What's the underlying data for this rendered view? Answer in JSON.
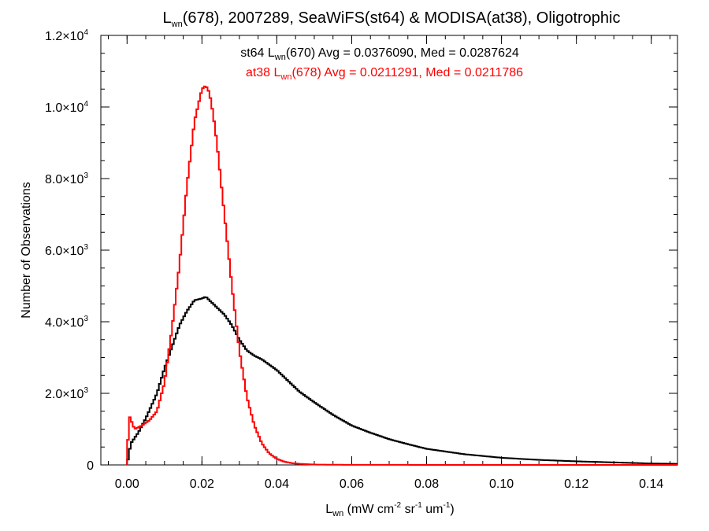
{
  "chart_data": {
    "type": "line",
    "title": {
      "main": "L",
      "sub": "wn",
      "rest": "(678), 2007289, SeaWiFS(st64) & MODISA(at38), Oligotrophic"
    },
    "xlabel": {
      "main": "L",
      "sub": "wn",
      "p1": " (mW cm",
      "sup1": "-2",
      "p2": " sr",
      "sup2": "-1",
      "p3": " um",
      "sup3": "-1",
      "p4": ")"
    },
    "ylabel": "Number of Observations",
    "xlim": [
      -0.007,
      0.147
    ],
    "ylim": [
      0,
      12000
    ],
    "xticks": [
      {
        "value": 0.0,
        "label": "0.00"
      },
      {
        "value": 0.02,
        "label": "0.02"
      },
      {
        "value": 0.04,
        "label": "0.04"
      },
      {
        "value": 0.06,
        "label": "0.06"
      },
      {
        "value": 0.08,
        "label": "0.08"
      },
      {
        "value": 0.1,
        "label": "0.10"
      },
      {
        "value": 0.12,
        "label": "0.12"
      },
      {
        "value": 0.14,
        "label": "0.14"
      }
    ],
    "yticks": [
      {
        "value": 0,
        "mant": "0",
        "exp": ""
      },
      {
        "value": 2000,
        "mant": "2.0×10",
        "exp": "3"
      },
      {
        "value": 4000,
        "mant": "4.0×10",
        "exp": "3"
      },
      {
        "value": 6000,
        "mant": "6.0×10",
        "exp": "3"
      },
      {
        "value": 8000,
        "mant": "8.0×10",
        "exp": "3"
      },
      {
        "value": 10000,
        "mant": "1.0×10",
        "exp": "4"
      },
      {
        "value": 12000,
        "mant": "1.2×10",
        "exp": "4"
      }
    ],
    "annotations": [
      {
        "id": "st64",
        "color": "#000000",
        "p1": "st64 L",
        "sub": "wn",
        "p2": "(670) Avg = 0.0376090, Med = 0.0287624"
      },
      {
        "id": "at38",
        "color": "#ff0000",
        "p1": "at38 L",
        "sub": "wn",
        "p2": "(678) Avg = 0.0211291, Med = 0.0211786"
      }
    ],
    "series": [
      {
        "id": "st64",
        "color": "#000000",
        "x": [
          0.0,
          0.001,
          0.003,
          0.005,
          0.008,
          0.01,
          0.012,
          0.014,
          0.016,
          0.018,
          0.02,
          0.021,
          0.022,
          0.024,
          0.026,
          0.028,
          0.03,
          0.032,
          0.034,
          0.036,
          0.038,
          0.04,
          0.043,
          0.046,
          0.05,
          0.055,
          0.06,
          0.065,
          0.07,
          0.075,
          0.08,
          0.09,
          0.1,
          0.11,
          0.12,
          0.13,
          0.14,
          0.147
        ],
        "values": [
          0,
          600,
          900,
          1300,
          2000,
          2700,
          3300,
          3900,
          4300,
          4600,
          4650,
          4700,
          4600,
          4400,
          4200,
          3900,
          3500,
          3200,
          3050,
          2950,
          2800,
          2650,
          2350,
          2050,
          1750,
          1400,
          1100,
          900,
          720,
          580,
          450,
          300,
          200,
          140,
          100,
          70,
          40,
          30
        ]
      },
      {
        "id": "at38",
        "color": "#ff0000",
        "x": [
          0.0,
          0.0005,
          0.002,
          0.004,
          0.006,
          0.008,
          0.01,
          0.012,
          0.014,
          0.016,
          0.018,
          0.02,
          0.021,
          0.022,
          0.023,
          0.024,
          0.026,
          0.028,
          0.03,
          0.032,
          0.034,
          0.036,
          0.038,
          0.04,
          0.042,
          0.044,
          0.046,
          0.048,
          0.05,
          0.055,
          0.06,
          0.07,
          0.08,
          0.1,
          0.147
        ],
        "values": [
          0,
          1400,
          1000,
          1100,
          1250,
          1500,
          2300,
          3800,
          5600,
          7800,
          9600,
          10500,
          10600,
          10400,
          9800,
          9000,
          7000,
          5000,
          3200,
          1900,
          1100,
          600,
          320,
          170,
          90,
          50,
          30,
          20,
          10,
          5,
          3,
          2,
          1,
          0,
          0
        ]
      }
    ]
  }
}
